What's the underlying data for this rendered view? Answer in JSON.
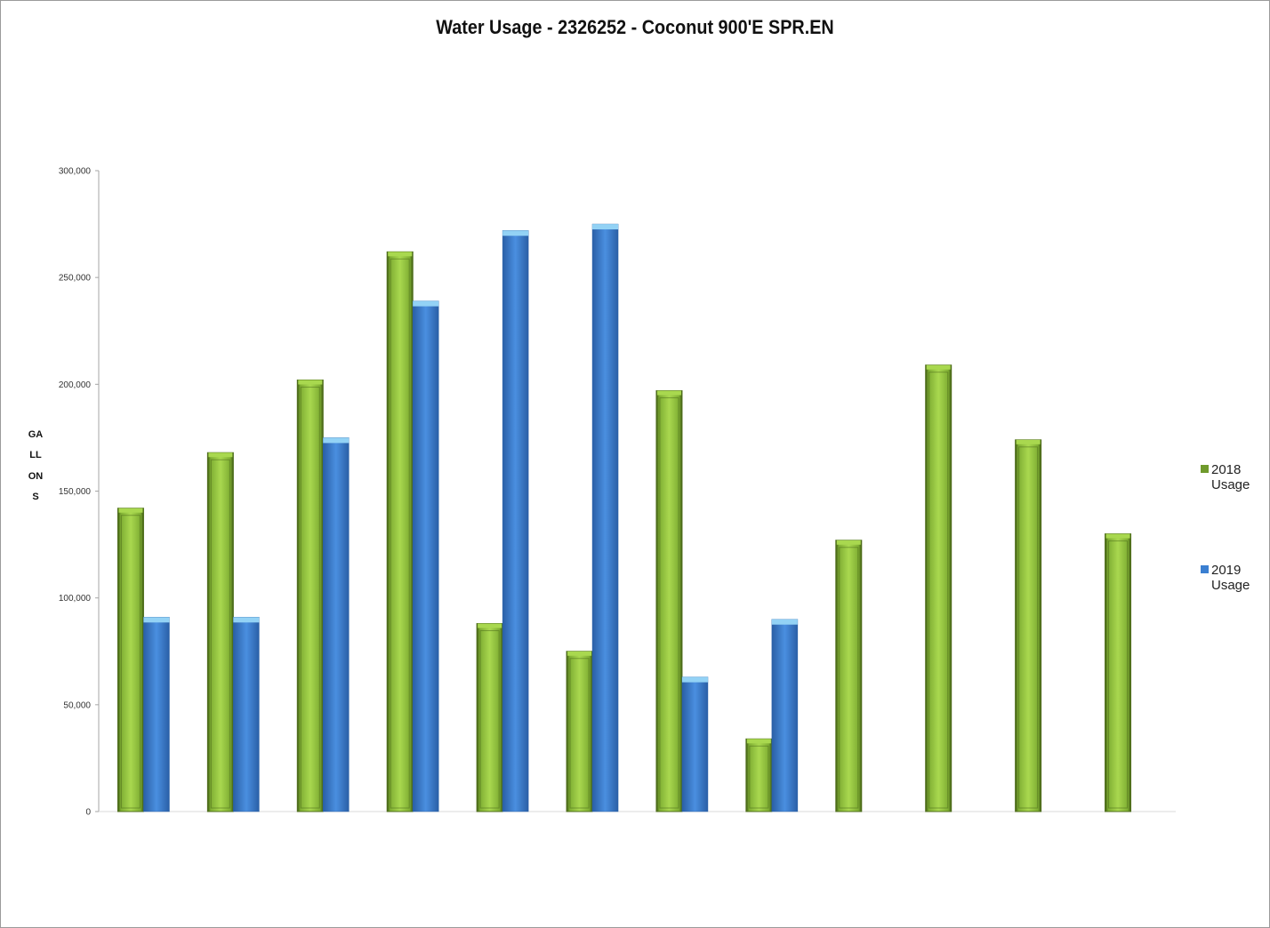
{
  "colors": {
    "green_fill": "#8bbf3a",
    "green_light": "#a9d84f",
    "green_dark": "#4f6e1c",
    "blue_fill": "#3b7fd1",
    "blue_light": "#93d2f5",
    "blue_dark": "#2a61a8"
  },
  "chart_data": {
    "type": "bar",
    "title": "Water Usage - 2326252 - Coconut 900'E SPR.EN",
    "xlabel": "",
    "ylabel": "GALLONS",
    "ylim": [
      0,
      300000
    ],
    "yticks": [
      0,
      50000,
      100000,
      150000,
      200000,
      250000,
      300000
    ],
    "ytick_labels": [
      "0",
      "50,000",
      "100,000",
      "150,000",
      "200,000",
      "250,000",
      "300,000"
    ],
    "grid": false,
    "legend_position": "right",
    "categories": [
      "",
      "",
      "",
      "",
      "",
      "",
      "",
      "",
      "",
      "",
      "",
      ""
    ],
    "series": [
      {
        "name": "2018 Usage",
        "label_year": "2018",
        "label_word": "Usage",
        "color": "#8bbf3a",
        "values": [
          142000,
          168000,
          202000,
          262000,
          88000,
          75000,
          197000,
          34000,
          127000,
          209000,
          174000,
          130000
        ]
      },
      {
        "name": "2019 Usage",
        "label_year": "2019",
        "label_word": "Usage",
        "color": "#3b7fd1",
        "values": [
          91000,
          91000,
          175000,
          239000,
          272000,
          275000,
          63000,
          90000,
          null,
          null,
          null,
          null
        ]
      }
    ]
  }
}
